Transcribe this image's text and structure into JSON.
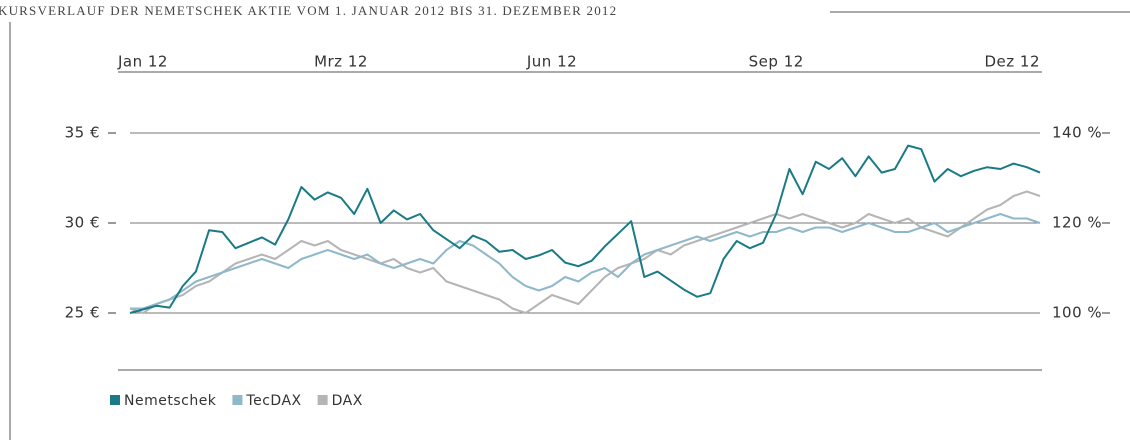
{
  "chart_data": {
    "type": "line",
    "title": "KURSVERLAUF DER NEMETSCHEK AKTIE VOM 1. JANUAR 2012 BIS 31. DEZEMBER 2012",
    "categories": [
      "Jan 12",
      null,
      null,
      null,
      null,
      null,
      null,
      null,
      null,
      null,
      null,
      null,
      null,
      null,
      null,
      null,
      "Mrz 12",
      null,
      null,
      null,
      null,
      null,
      null,
      null,
      null,
      null,
      null,
      null,
      null,
      null,
      null,
      null,
      "Jun 12",
      null,
      null,
      null,
      null,
      null,
      null,
      null,
      null,
      null,
      null,
      null,
      null,
      null,
      null,
      null,
      null,
      "Sep 12",
      null,
      null,
      null,
      null,
      null,
      null,
      null,
      null,
      null,
      null,
      null,
      null,
      null,
      null,
      null,
      null,
      null,
      null,
      null,
      "Dez 12"
    ],
    "series": [
      {
        "name": "Nemetschek",
        "color": "#1a7a85",
        "values": [
          25.0,
          25.2,
          25.4,
          25.3,
          26.5,
          27.3,
          29.6,
          29.5,
          28.6,
          28.9,
          29.2,
          28.8,
          30.2,
          32.0,
          31.3,
          31.7,
          31.4,
          30.5,
          31.9,
          30.0,
          30.7,
          30.2,
          30.5,
          29.6,
          29.1,
          28.6,
          29.3,
          29.0,
          28.4,
          28.5,
          28.0,
          28.2,
          28.5,
          27.8,
          27.6,
          27.9,
          28.7,
          29.4,
          30.1,
          27.0,
          27.3,
          26.8,
          26.3,
          25.9,
          26.1,
          28.0,
          29.0,
          28.6,
          28.9,
          30.5,
          33.0,
          31.6,
          33.4,
          33.0,
          33.6,
          32.6,
          33.7,
          32.8,
          33.0,
          34.3,
          34.1,
          32.3,
          33.0,
          32.6,
          32.9,
          33.1,
          33.0,
          33.3,
          33.1,
          32.8
        ]
      },
      {
        "name": "TecDAX",
        "color": "#8fb8cb",
        "axis": "y2",
        "values": [
          101,
          101,
          102,
          103,
          105,
          107,
          108,
          109,
          110,
          111,
          112,
          111,
          110,
          112,
          113,
          114,
          113,
          112,
          113,
          111,
          110,
          111,
          112,
          111,
          114,
          116,
          115,
          113,
          111,
          108,
          106,
          105,
          106,
          108,
          107,
          109,
          110,
          108,
          111,
          113,
          114,
          115,
          116,
          117,
          116,
          117,
          118,
          117,
          118,
          118,
          119,
          118,
          119,
          119,
          118,
          119,
          120,
          119,
          118,
          118,
          119,
          120,
          118,
          119,
          120,
          121,
          122,
          121,
          121,
          120
        ]
      },
      {
        "name": "DAX",
        "color": "#b5b5b5",
        "axis": "y2",
        "values": [
          101,
          100,
          102,
          103,
          104,
          106,
          107,
          109,
          111,
          112,
          113,
          112,
          114,
          116,
          115,
          116,
          114,
          113,
          112,
          111,
          112,
          110,
          109,
          110,
          107,
          106,
          105,
          104,
          103,
          101,
          100,
          102,
          104,
          103,
          102,
          105,
          108,
          110,
          111,
          112,
          114,
          113,
          115,
          116,
          117,
          118,
          119,
          120,
          121,
          122,
          121,
          122,
          121,
          120,
          119,
          120,
          122,
          121,
          120,
          121,
          119,
          118,
          117,
          119,
          121,
          123,
          124,
          126,
          127,
          126
        ]
      }
    ],
    "ylim": [
      22,
      36.5
    ],
    "yticks": [
      {
        "value": 25,
        "label": "25 €"
      },
      {
        "value": 30,
        "label": "30 €"
      },
      {
        "value": 35,
        "label": "35 €"
      }
    ],
    "y2lim": [
      88,
      146
    ],
    "y2ticks": [
      {
        "value": 100,
        "label": "100 %"
      },
      {
        "value": 120,
        "label": "120 %"
      },
      {
        "value": 140,
        "label": "140 %"
      }
    ],
    "grid": true,
    "legend": "bottom-left"
  }
}
